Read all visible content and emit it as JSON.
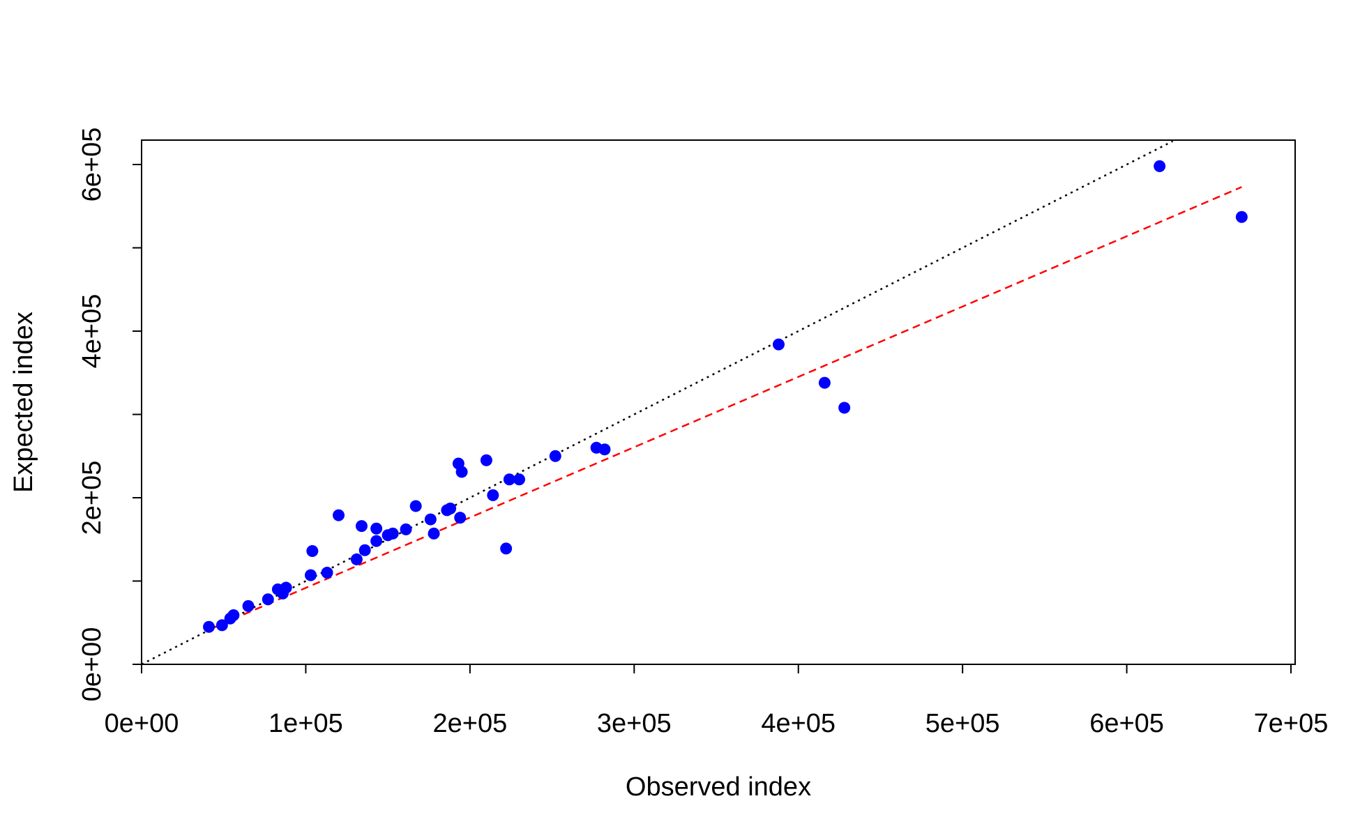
{
  "chart_data": {
    "type": "scatter",
    "xlabel": "Observed index",
    "ylabel": "Expected index",
    "xlim": [
      0,
      700000
    ],
    "ylim": [
      0,
      600000
    ],
    "x_ticks": [
      0,
      100000,
      200000,
      300000,
      400000,
      500000,
      600000,
      700000
    ],
    "x_tick_labels": [
      "0e+00",
      "1e+05",
      "2e+05",
      "3e+05",
      "4e+05",
      "5e+05",
      "6e+05",
      "7e+05"
    ],
    "y_ticks": [
      0,
      100000,
      200000,
      300000,
      400000,
      500000,
      600000
    ],
    "y_tick_labels": [
      "0e+00",
      "",
      "2e+05",
      "",
      "4e+05",
      "",
      "6e+05"
    ],
    "point_color": "#0000FF",
    "points": [
      [
        41000,
        45000
      ],
      [
        49000,
        47000
      ],
      [
        54000,
        55000
      ],
      [
        56000,
        59000
      ],
      [
        65000,
        70000
      ],
      [
        77000,
        78000
      ],
      [
        83000,
        90000
      ],
      [
        86000,
        85000
      ],
      [
        88000,
        92000
      ],
      [
        103000,
        107000
      ],
      [
        104000,
        136000
      ],
      [
        113000,
        110000
      ],
      [
        120000,
        179000
      ],
      [
        131000,
        126000
      ],
      [
        134000,
        166000
      ],
      [
        136000,
        137000
      ],
      [
        143000,
        148000
      ],
      [
        143000,
        163000
      ],
      [
        150000,
        155000
      ],
      [
        153000,
        157000
      ],
      [
        161000,
        162000
      ],
      [
        167000,
        190000
      ],
      [
        176000,
        174000
      ],
      [
        178000,
        157000
      ],
      [
        186000,
        185000
      ],
      [
        188000,
        187000
      ],
      [
        193000,
        241000
      ],
      [
        194000,
        176000
      ],
      [
        195000,
        231000
      ],
      [
        210000,
        245000
      ],
      [
        214000,
        203000
      ],
      [
        222000,
        139000
      ],
      [
        224000,
        222000
      ],
      [
        230000,
        222000
      ],
      [
        252000,
        250000
      ],
      [
        277000,
        260000
      ],
      [
        282000,
        258000
      ],
      [
        388000,
        384000
      ],
      [
        416000,
        338000
      ],
      [
        428000,
        308000
      ],
      [
        620000,
        598000
      ],
      [
        670000,
        537000
      ]
    ],
    "identity_line": {
      "style": "dotted",
      "color": "#000000",
      "from": [
        0,
        0
      ],
      "to": [
        628000,
        628000
      ]
    },
    "fit_line": {
      "style": "dashed",
      "color": "#FF0000",
      "from": [
        41000,
        42000
      ],
      "to": [
        670000,
        573000
      ]
    },
    "grid": false,
    "legend": "none"
  }
}
